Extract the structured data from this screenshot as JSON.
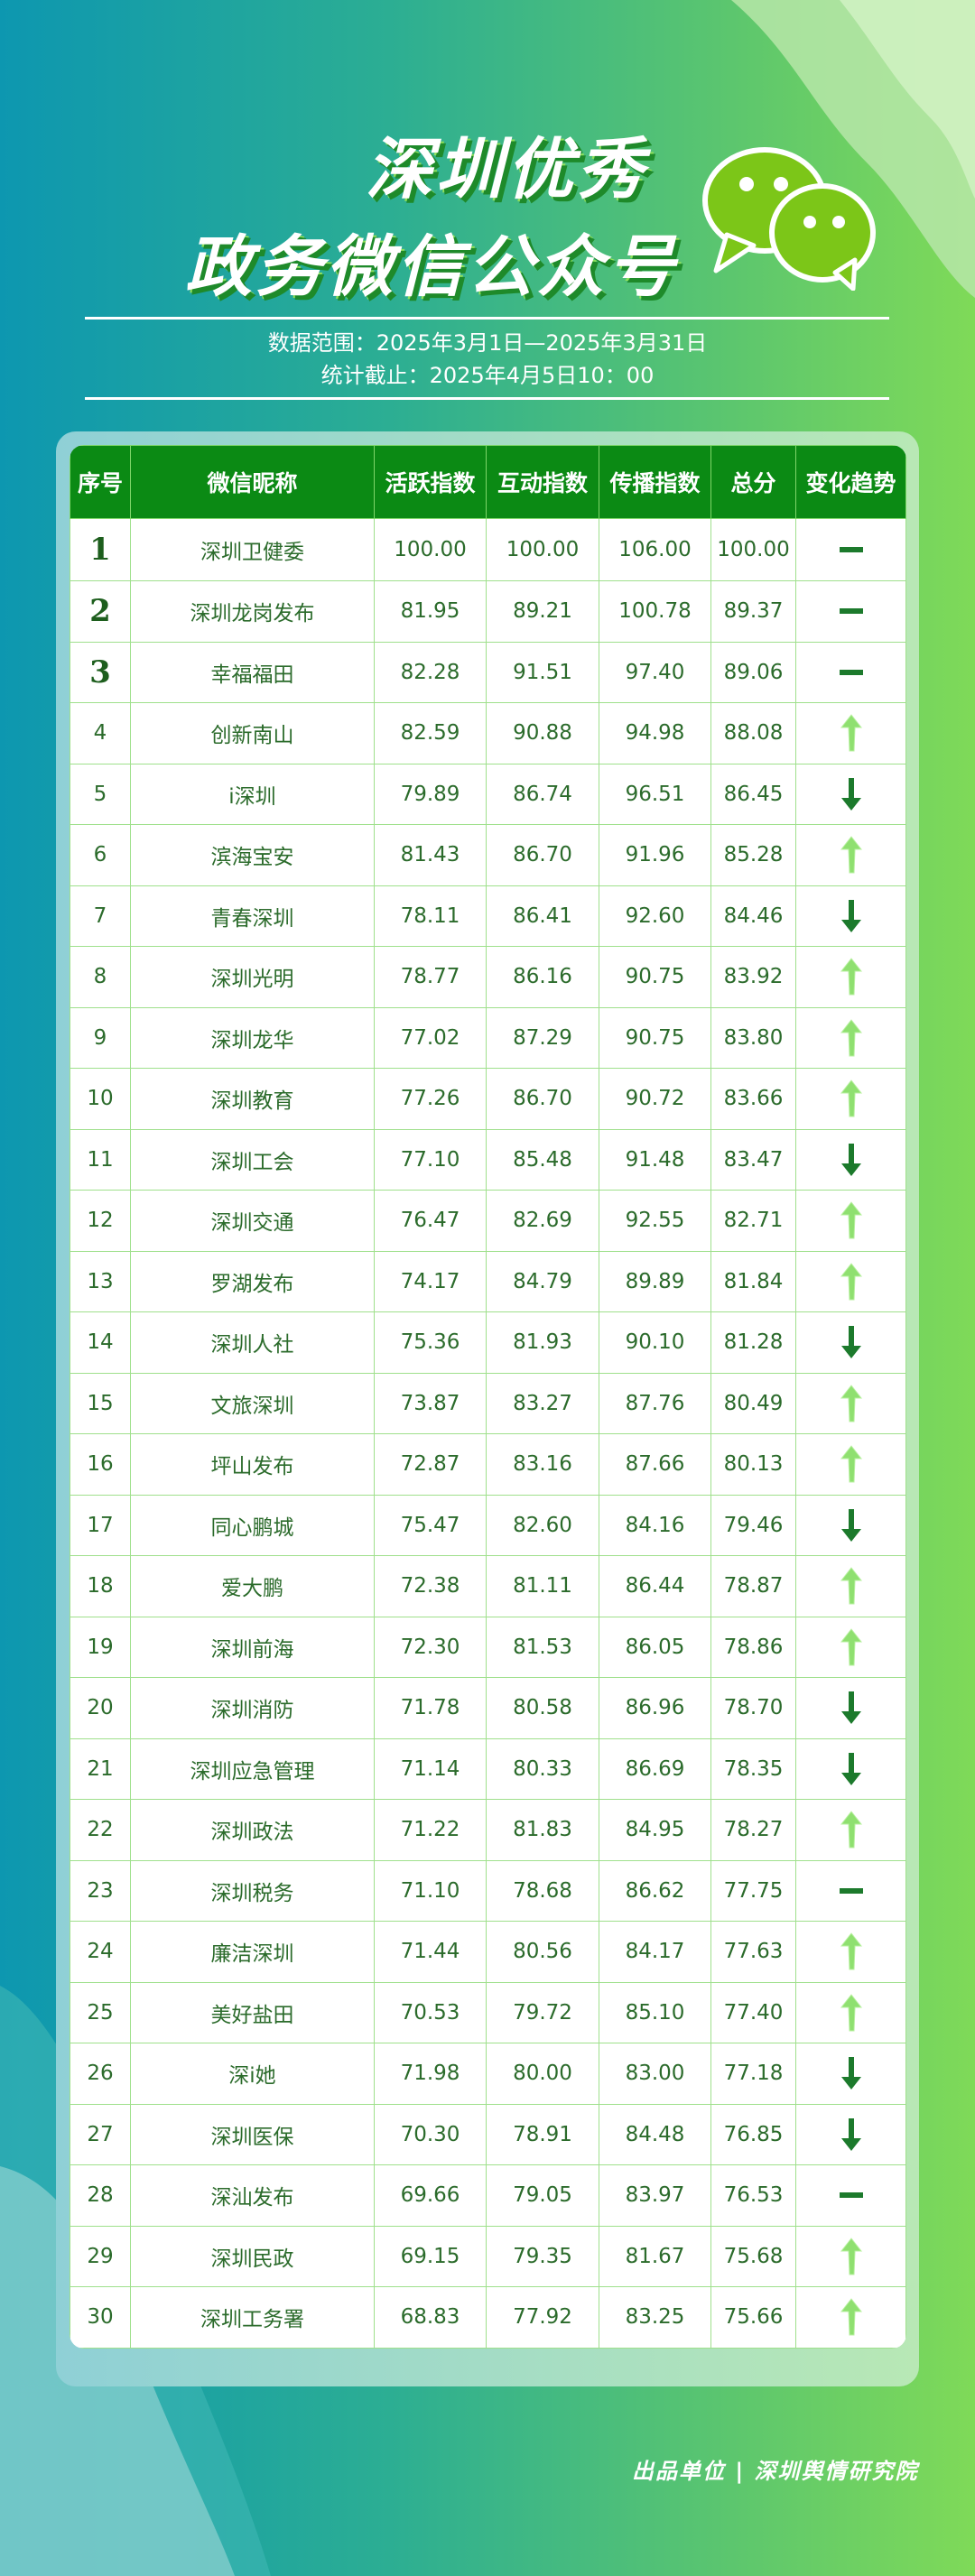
{
  "title": {
    "line1": "深圳优秀",
    "line2": "政务微信公众号"
  },
  "data_range": "数据范围：2025年3月1日—2025年3月31日",
  "cutoff": "统计截止：2025年4月5日10：00",
  "table": {
    "headers": [
      "序号",
      "微信昵称",
      "活跃指数",
      "互动指数",
      "传播指数",
      "总分",
      "变化趋势"
    ],
    "rows": [
      {
        "rank": "1",
        "name": "深圳卫健委",
        "active": "100.00",
        "interact": "100.00",
        "spread": "106.00",
        "total": "100.00",
        "trend": "flat"
      },
      {
        "rank": "2",
        "name": "深圳龙岗发布",
        "active": "81.95",
        "interact": "89.21",
        "spread": "100.78",
        "total": "89.37",
        "trend": "flat"
      },
      {
        "rank": "3",
        "name": "幸福福田",
        "active": "82.28",
        "interact": "91.51",
        "spread": "97.40",
        "total": "89.06",
        "trend": "flat"
      },
      {
        "rank": "4",
        "name": "创新南山",
        "active": "82.59",
        "interact": "90.88",
        "spread": "94.98",
        "total": "88.08",
        "trend": "up"
      },
      {
        "rank": "5",
        "name": "i深圳",
        "active": "79.89",
        "interact": "86.74",
        "spread": "96.51",
        "total": "86.45",
        "trend": "down"
      },
      {
        "rank": "6",
        "name": "滨海宝安",
        "active": "81.43",
        "interact": "86.70",
        "spread": "91.96",
        "total": "85.28",
        "trend": "up"
      },
      {
        "rank": "7",
        "name": "青春深圳",
        "active": "78.11",
        "interact": "86.41",
        "spread": "92.60",
        "total": "84.46",
        "trend": "down"
      },
      {
        "rank": "8",
        "name": "深圳光明",
        "active": "78.77",
        "interact": "86.16",
        "spread": "90.75",
        "total": "83.92",
        "trend": "up"
      },
      {
        "rank": "9",
        "name": "深圳龙华",
        "active": "77.02",
        "interact": "87.29",
        "spread": "90.75",
        "total": "83.80",
        "trend": "up"
      },
      {
        "rank": "10",
        "name": "深圳教育",
        "active": "77.26",
        "interact": "86.70",
        "spread": "90.72",
        "total": "83.66",
        "trend": "up"
      },
      {
        "rank": "11",
        "name": "深圳工会",
        "active": "77.10",
        "interact": "85.48",
        "spread": "91.48",
        "total": "83.47",
        "trend": "down"
      },
      {
        "rank": "12",
        "name": "深圳交通",
        "active": "76.47",
        "interact": "82.69",
        "spread": "92.55",
        "total": "82.71",
        "trend": "up"
      },
      {
        "rank": "13",
        "name": "罗湖发布",
        "active": "74.17",
        "interact": "84.79",
        "spread": "89.89",
        "total": "81.84",
        "trend": "up"
      },
      {
        "rank": "14",
        "name": "深圳人社",
        "active": "75.36",
        "interact": "81.93",
        "spread": "90.10",
        "total": "81.28",
        "trend": "down"
      },
      {
        "rank": "15",
        "name": "文旅深圳",
        "active": "73.87",
        "interact": "83.27",
        "spread": "87.76",
        "total": "80.49",
        "trend": "up"
      },
      {
        "rank": "16",
        "name": "坪山发布",
        "active": "72.87",
        "interact": "83.16",
        "spread": "87.66",
        "total": "80.13",
        "trend": "up"
      },
      {
        "rank": "17",
        "name": "同心鹏城",
        "active": "75.47",
        "interact": "82.60",
        "spread": "84.16",
        "total": "79.46",
        "trend": "down"
      },
      {
        "rank": "18",
        "name": "爱大鹏",
        "active": "72.38",
        "interact": "81.11",
        "spread": "86.44",
        "total": "78.87",
        "trend": "up"
      },
      {
        "rank": "19",
        "name": "深圳前海",
        "active": "72.30",
        "interact": "81.53",
        "spread": "86.05",
        "total": "78.86",
        "trend": "up"
      },
      {
        "rank": "20",
        "name": "深圳消防",
        "active": "71.78",
        "interact": "80.58",
        "spread": "86.96",
        "total": "78.70",
        "trend": "down"
      },
      {
        "rank": "21",
        "name": "深圳应急管理",
        "active": "71.14",
        "interact": "80.33",
        "spread": "86.69",
        "total": "78.35",
        "trend": "down"
      },
      {
        "rank": "22",
        "name": "深圳政法",
        "active": "71.22",
        "interact": "81.83",
        "spread": "84.95",
        "total": "78.27",
        "trend": "up"
      },
      {
        "rank": "23",
        "name": "深圳税务",
        "active": "71.10",
        "interact": "78.68",
        "spread": "86.62",
        "total": "77.75",
        "trend": "flat"
      },
      {
        "rank": "24",
        "name": "廉洁深圳",
        "active": "71.44",
        "interact": "80.56",
        "spread": "84.17",
        "total": "77.63",
        "trend": "up"
      },
      {
        "rank": "25",
        "name": "美好盐田",
        "active": "70.53",
        "interact": "79.72",
        "spread": "85.10",
        "total": "77.40",
        "trend": "up"
      },
      {
        "rank": "26",
        "name": "深i她",
        "active": "71.98",
        "interact": "80.00",
        "spread": "83.00",
        "total": "77.18",
        "trend": "down"
      },
      {
        "rank": "27",
        "name": "深圳医保",
        "active": "70.30",
        "interact": "78.91",
        "spread": "84.48",
        "total": "76.85",
        "trend": "down"
      },
      {
        "rank": "28",
        "name": "深汕发布",
        "active": "69.66",
        "interact": "79.05",
        "spread": "83.97",
        "total": "76.53",
        "trend": "flat"
      },
      {
        "rank": "29",
        "name": "深圳民政",
        "active": "69.15",
        "interact": "79.35",
        "spread": "81.67",
        "total": "75.68",
        "trend": "up"
      },
      {
        "rank": "30",
        "name": "深圳工务署",
        "active": "68.83",
        "interact": "77.92",
        "spread": "83.25",
        "total": "75.66",
        "trend": "up"
      }
    ]
  },
  "footer": "出品单位 | 深圳舆情研究院",
  "colors": {
    "header_bg": "#0b8a14",
    "up": "#8fe070",
    "down": "#1c7a2c",
    "flat": "#1c7a2c",
    "text": "#2b6b2b"
  },
  "icons": {
    "logo": "wechat-icon",
    "up": "arrow-up-icon",
    "down": "arrow-down-icon",
    "flat": "dash-icon"
  }
}
